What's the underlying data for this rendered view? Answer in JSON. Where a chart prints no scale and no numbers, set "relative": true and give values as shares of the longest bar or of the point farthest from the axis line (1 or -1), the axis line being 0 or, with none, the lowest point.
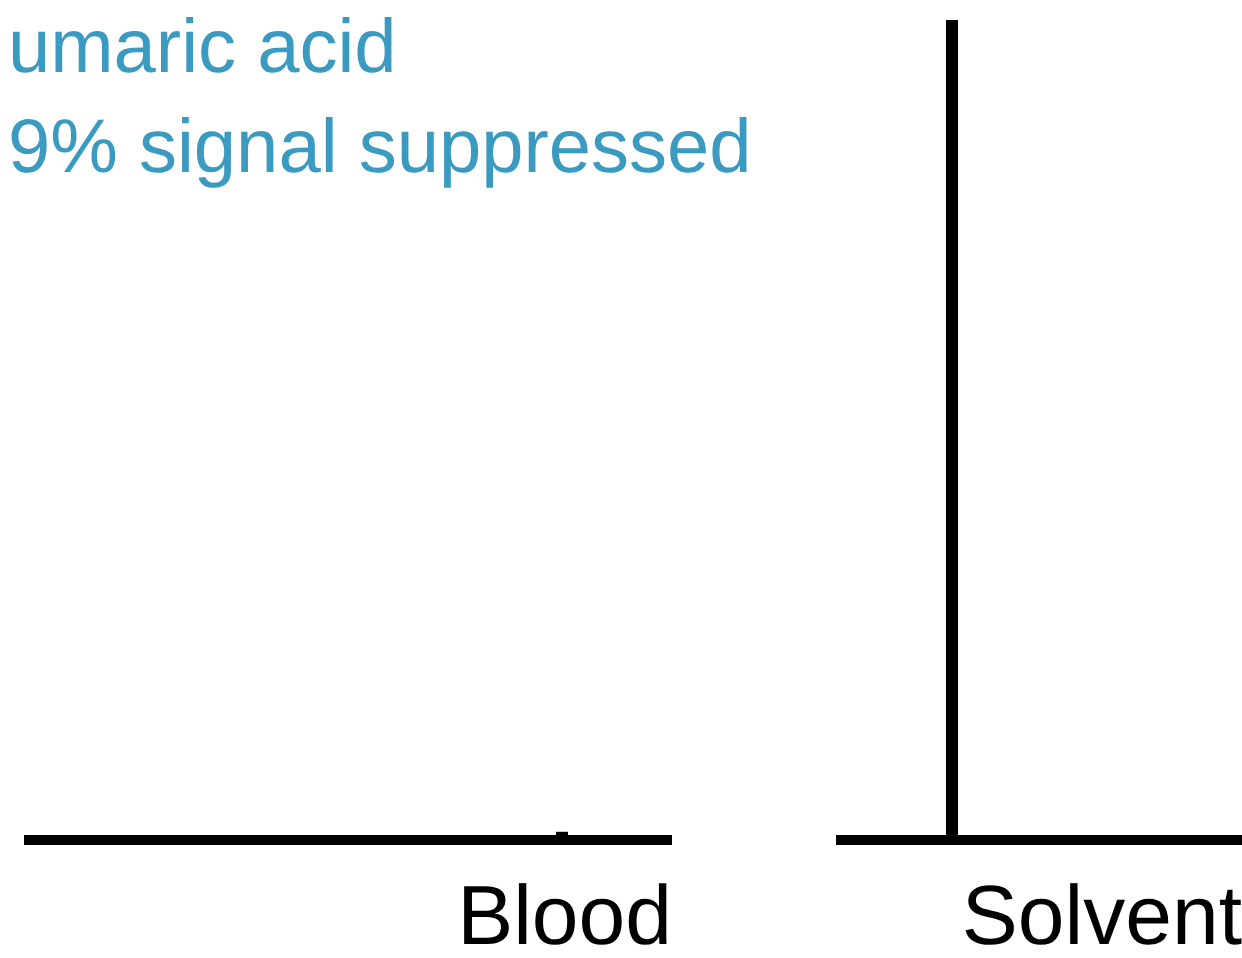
{
  "chart_data": {
    "type": "bar",
    "relative": true,
    "categories": [
      "Blood",
      "Solvent"
    ],
    "values": [
      0.01,
      1
    ],
    "color": "#000000",
    "annotations": [
      "umaric acid",
      "9% signal suppressed"
    ]
  }
}
